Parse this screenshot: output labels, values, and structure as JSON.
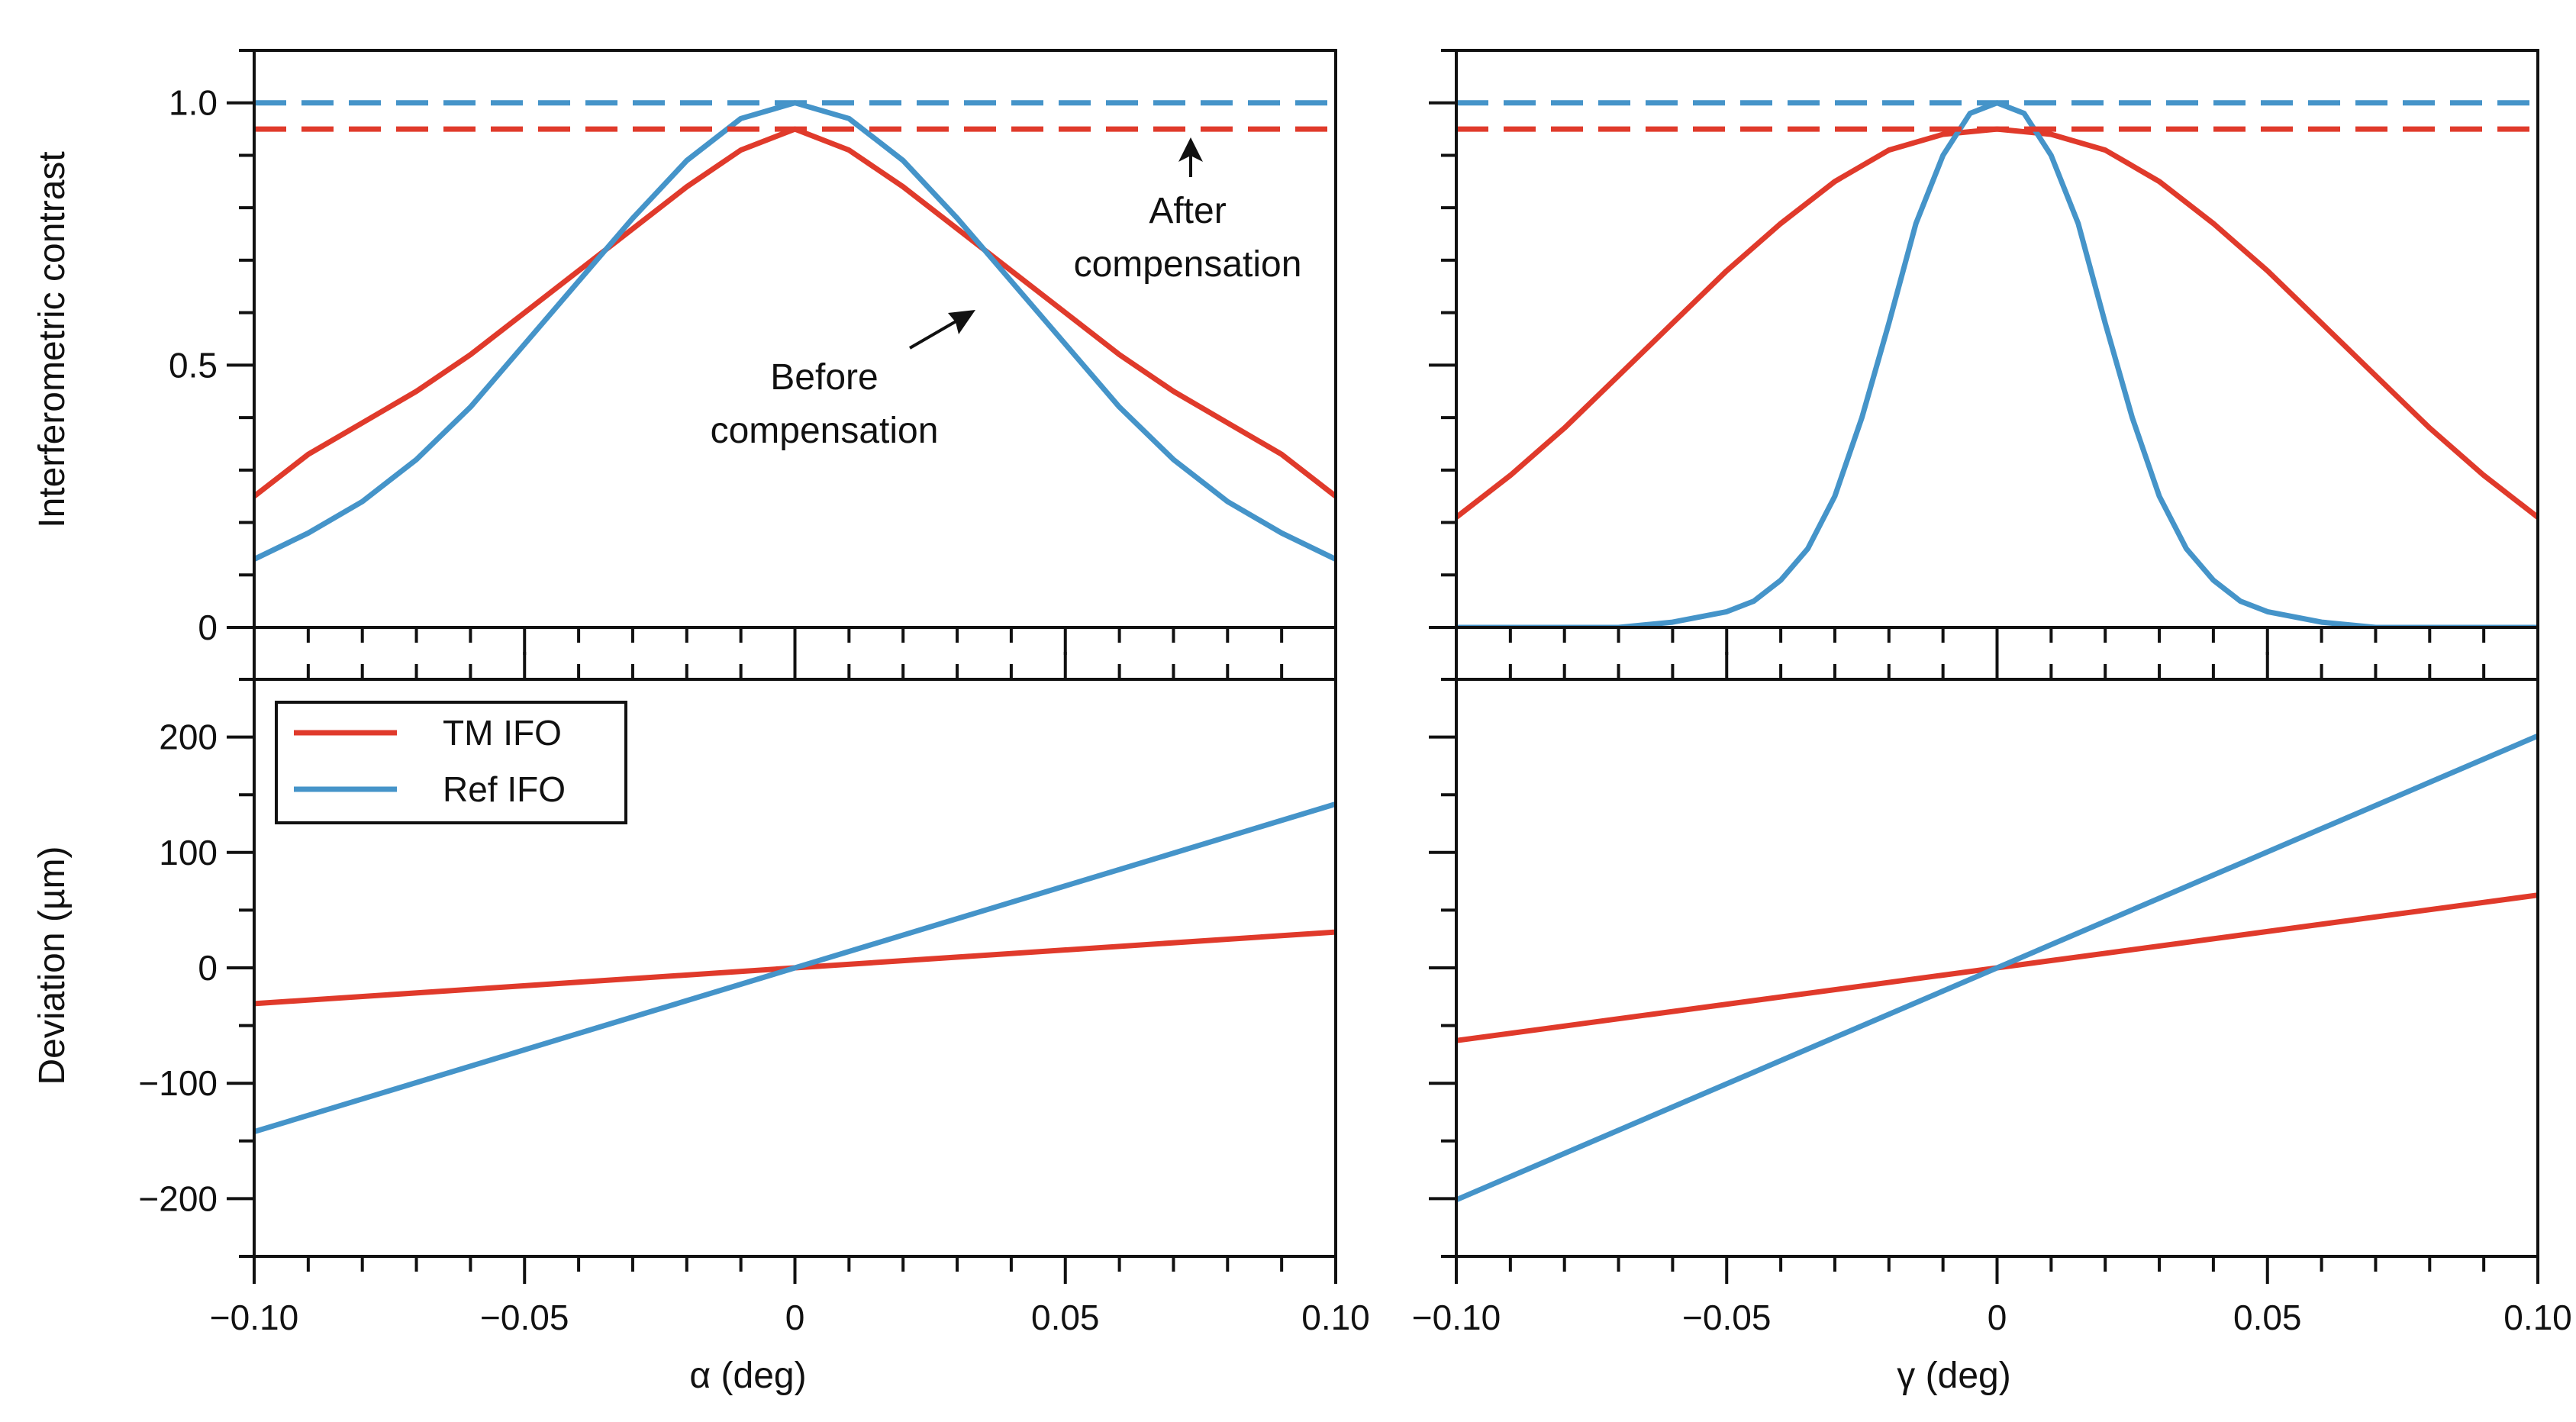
{
  "chart_data": [
    {
      "panel": "top-left",
      "type": "line",
      "title": "",
      "xlabel": "",
      "ylabel": "Interferometric contrast",
      "xlim": [
        -0.1,
        0.1
      ],
      "ylim": [
        0,
        1.1
      ],
      "x_ticks": [
        -0.1,
        -0.05,
        0,
        0.05,
        0.1
      ],
      "x_tick_labels": [
        "",
        "",
        "",
        "",
        ""
      ],
      "y_ticks": [
        0,
        0.5,
        1.0
      ],
      "y_tick_labels": [
        "0",
        "0.5",
        "1.0"
      ],
      "series": [
        {
          "name": "TM IFO",
          "color": "#e03a2b",
          "style": "solid",
          "x": [
            -0.1,
            -0.09,
            -0.08,
            -0.07,
            -0.06,
            -0.05,
            -0.04,
            -0.03,
            -0.02,
            -0.01,
            0,
            0.01,
            0.02,
            0.03,
            0.04,
            0.05,
            0.06,
            0.07,
            0.08,
            0.09,
            0.1
          ],
          "y": [
            0.25,
            0.33,
            0.39,
            0.45,
            0.52,
            0.6,
            0.68,
            0.76,
            0.84,
            0.91,
            0.95,
            0.91,
            0.84,
            0.76,
            0.68,
            0.6,
            0.52,
            0.45,
            0.39,
            0.33,
            0.25
          ]
        },
        {
          "name": "Ref IFO",
          "color": "#4594c9",
          "style": "solid",
          "x": [
            -0.1,
            -0.09,
            -0.08,
            -0.07,
            -0.06,
            -0.05,
            -0.04,
            -0.03,
            -0.02,
            -0.01,
            0,
            0.01,
            0.02,
            0.03,
            0.04,
            0.05,
            0.06,
            0.07,
            0.08,
            0.09,
            0.1
          ],
          "y": [
            0.13,
            0.18,
            0.24,
            0.32,
            0.42,
            0.54,
            0.66,
            0.78,
            0.89,
            0.97,
            1.0,
            0.97,
            0.89,
            0.78,
            0.66,
            0.54,
            0.42,
            0.32,
            0.24,
            0.18,
            0.13
          ]
        },
        {
          "name": "TM IFO after compensation",
          "color": "#e03a2b",
          "style": "dashed",
          "x": [
            -0.1,
            0.1
          ],
          "y": [
            0.95,
            0.95
          ]
        },
        {
          "name": "Ref IFO after compensation",
          "color": "#4594c9",
          "style": "dashed",
          "x": [
            -0.1,
            0.1
          ],
          "y": [
            1.0,
            1.0
          ]
        }
      ],
      "annotations": [
        {
          "lines": [
            "After",
            "compensation"
          ],
          "arrow_to": [
            0.073,
            0.93
          ],
          "text_at": [
            0.073,
            0.78
          ]
        },
        {
          "lines": [
            "Before",
            "compensation"
          ],
          "arrow_to": [
            0.033,
            0.6
          ],
          "text_at": [
            0.005,
            0.47
          ]
        }
      ]
    },
    {
      "panel": "top-right",
      "type": "line",
      "title": "",
      "xlabel": "",
      "ylabel": "",
      "xlim": [
        -0.1,
        0.1
      ],
      "ylim": [
        0,
        1.1
      ],
      "x_ticks": [
        -0.1,
        -0.05,
        0,
        0.05,
        0.1
      ],
      "x_tick_labels": [
        "",
        "",
        "",
        "",
        ""
      ],
      "y_ticks": [
        0,
        0.5,
        1.0
      ],
      "y_tick_labels": [
        "",
        "",
        ""
      ],
      "series": [
        {
          "name": "TM IFO",
          "color": "#e03a2b",
          "style": "solid",
          "x": [
            -0.1,
            -0.09,
            -0.08,
            -0.07,
            -0.06,
            -0.05,
            -0.04,
            -0.03,
            -0.02,
            -0.01,
            0,
            0.01,
            0.02,
            0.03,
            0.04,
            0.05,
            0.06,
            0.07,
            0.08,
            0.09,
            0.1
          ],
          "y": [
            0.21,
            0.29,
            0.38,
            0.48,
            0.58,
            0.68,
            0.77,
            0.85,
            0.91,
            0.94,
            0.95,
            0.94,
            0.91,
            0.85,
            0.77,
            0.68,
            0.58,
            0.48,
            0.38,
            0.29,
            0.21
          ]
        },
        {
          "name": "Ref IFO",
          "color": "#4594c9",
          "style": "solid",
          "x": [
            -0.1,
            -0.09,
            -0.08,
            -0.07,
            -0.06,
            -0.05,
            -0.045,
            -0.04,
            -0.035,
            -0.03,
            -0.025,
            -0.02,
            -0.015,
            -0.01,
            -0.005,
            0,
            0.005,
            0.01,
            0.015,
            0.02,
            0.025,
            0.03,
            0.035,
            0.04,
            0.045,
            0.05,
            0.06,
            0.07,
            0.08,
            0.09,
            0.1
          ],
          "y": [
            0,
            0,
            0,
            0,
            0.01,
            0.03,
            0.05,
            0.09,
            0.15,
            0.25,
            0.4,
            0.58,
            0.77,
            0.9,
            0.98,
            1.0,
            0.98,
            0.9,
            0.77,
            0.58,
            0.4,
            0.25,
            0.15,
            0.09,
            0.05,
            0.03,
            0.01,
            0,
            0,
            0,
            0
          ]
        },
        {
          "name": "TM IFO after compensation",
          "color": "#e03a2b",
          "style": "dashed",
          "x": [
            -0.1,
            0.1
          ],
          "y": [
            0.95,
            0.95
          ]
        },
        {
          "name": "Ref IFO after compensation",
          "color": "#4594c9",
          "style": "dashed",
          "x": [
            -0.1,
            0.1
          ],
          "y": [
            1.0,
            1.0
          ]
        }
      ]
    },
    {
      "panel": "bottom-left",
      "type": "line",
      "title": "",
      "xlabel": "α (deg)",
      "ylabel": "Deviation (µm)",
      "xlim": [
        -0.1,
        0.1
      ],
      "ylim": [
        -250,
        250
      ],
      "x_ticks": [
        -0.1,
        -0.05,
        0,
        0.05,
        0.1
      ],
      "x_tick_labels": [
        "−0.10",
        "−0.05",
        "0",
        "0.05",
        "0.10"
      ],
      "y_ticks": [
        -200,
        -100,
        0,
        100,
        200
      ],
      "y_tick_labels": [
        "−200",
        "−100",
        "0",
        "100",
        "200"
      ],
      "legend": {
        "placement": "top-left",
        "entries": [
          "TM IFO",
          "Ref IFO"
        ]
      },
      "series": [
        {
          "name": "TM IFO",
          "color": "#e03a2b",
          "style": "solid",
          "x": [
            -0.1,
            0.1
          ],
          "y": [
            -31,
            31
          ]
        },
        {
          "name": "Ref IFO",
          "color": "#4594c9",
          "style": "solid",
          "x": [
            -0.1,
            0.1
          ],
          "y": [
            -142,
            142
          ]
        }
      ]
    },
    {
      "panel": "bottom-right",
      "type": "line",
      "title": "",
      "xlabel": "γ (deg)",
      "ylabel": "",
      "xlim": [
        -0.1,
        0.1
      ],
      "ylim": [
        -250,
        250
      ],
      "x_ticks": [
        -0.1,
        -0.05,
        0,
        0.05,
        0.1
      ],
      "x_tick_labels": [
        "−0.10",
        "−0.05",
        "0",
        "0.05",
        "0.10"
      ],
      "y_ticks": [
        -200,
        -100,
        0,
        100,
        200
      ],
      "y_tick_labels": [
        "",
        "",
        "",
        "",
        ""
      ],
      "series": [
        {
          "name": "TM IFO",
          "color": "#e03a2b",
          "style": "solid",
          "x": [
            -0.1,
            0.1
          ],
          "y": [
            -63,
            63
          ]
        },
        {
          "name": "Ref IFO",
          "color": "#4594c9",
          "style": "solid",
          "x": [
            -0.1,
            0.1
          ],
          "y": [
            -201,
            201
          ]
        }
      ]
    }
  ]
}
